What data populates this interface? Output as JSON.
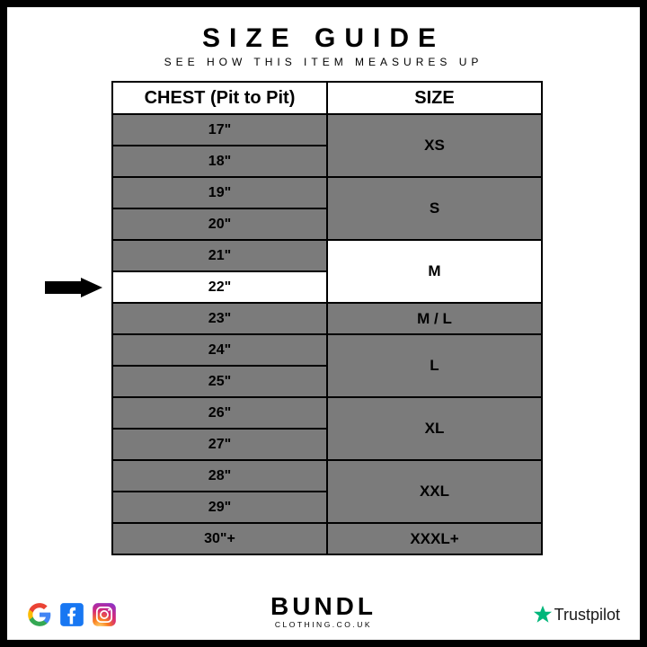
{
  "title": "SIZE GUIDE",
  "subtitle": "SEE HOW THIS ITEM MEASURES UP",
  "table": {
    "headers": {
      "chest": "CHEST (Pit to Pit)",
      "size": "SIZE"
    },
    "body_bg_gray": "#7b7b7b",
    "highlight_bg": "#ffffff",
    "border_color": "#000000",
    "chest_values": [
      "17\"",
      "18\"",
      "19\"",
      "20\"",
      "21\"",
      "22\"",
      "23\"",
      "24\"",
      "25\"",
      "26\"",
      "27\"",
      "28\"",
      "29\"",
      "30\"+"
    ],
    "size_groups": [
      {
        "label": "XS",
        "rowspan": 2
      },
      {
        "label": "S",
        "rowspan": 2
      },
      {
        "label": "M",
        "rowspan": 2,
        "highlight": true
      },
      {
        "label": "M / L",
        "rowspan": 1
      },
      {
        "label": "L",
        "rowspan": 2
      },
      {
        "label": "XL",
        "rowspan": 2
      },
      {
        "label": "XXL",
        "rowspan": 2
      },
      {
        "label": "XXXL+",
        "rowspan": 1
      }
    ],
    "highlighted_chest_row_index": 5,
    "arrow_row_index": 5
  },
  "footer": {
    "brand_name": "BUNDL",
    "brand_url": "CLOTHING.CO.UK",
    "trustpilot_label": "Trustpilot",
    "trustpilot_star_color": "#00b67a",
    "google_colors": {
      "blue": "#4285F4",
      "red": "#EA4335",
      "yellow": "#FBBC05",
      "green": "#34A853"
    },
    "facebook_color": "#1877F2",
    "instagram_gradient": [
      "#feda75",
      "#fa7e1e",
      "#d62976",
      "#962fbf",
      "#4f5bd5"
    ]
  }
}
